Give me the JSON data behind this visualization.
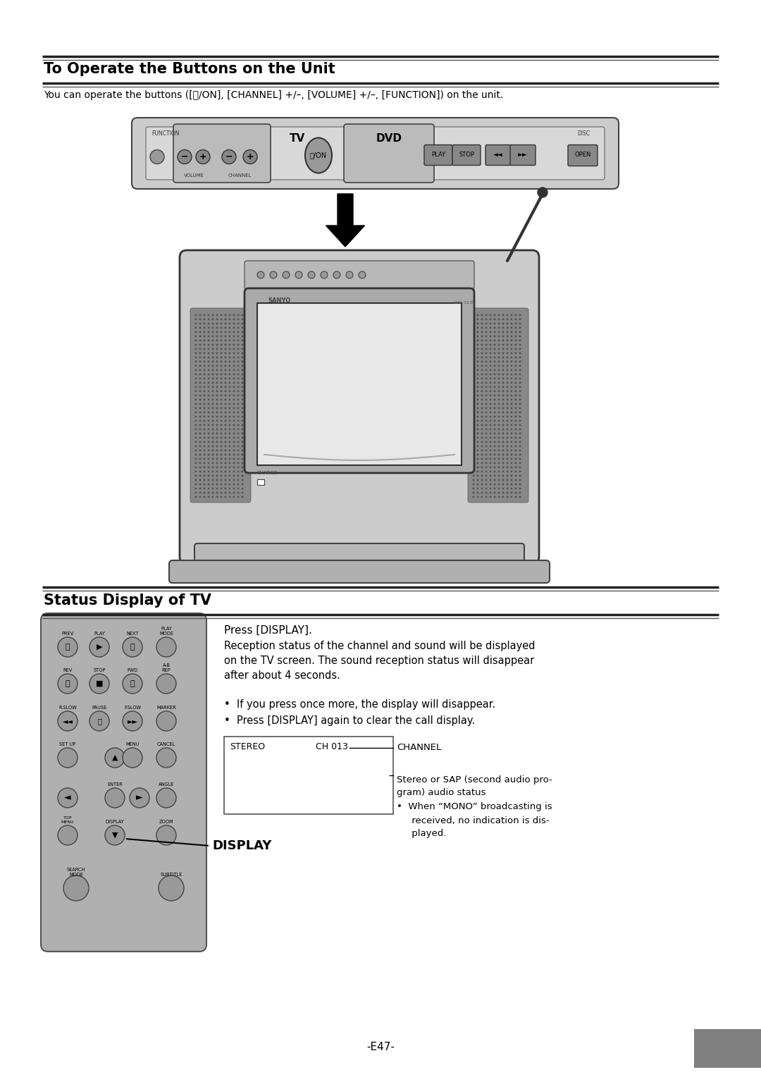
{
  "bg_color": "#ffffff",
  "title1": "To Operate the Buttons on the Unit",
  "title2": "Status Display of TV",
  "subtitle1": "You can operate the buttons ([⏻/ON], [CHANNEL] +/–, [VOLUME] +/–, [FUNCTION]) on the unit.",
  "press_display": "Press [DISPLAY].",
  "reception_text": "Reception status of the channel and sound will be displayed\non the TV screen. The sound reception status will disappear\nafter about 4 seconds.",
  "bullet1": "•  If you press once more, the display will disappear.",
  "bullet2": "•  Press [DISPLAY] again to clear the call display.",
  "stereo_label": "STEREO",
  "ch_label": "CH 013",
  "channel_annot": "CHANNEL",
  "stereo_annot1": "Stereo or SAP (second audio pro-",
  "stereo_annot2": "gram) audio status",
  "mono_bullet": "•  When “MONO” broadcasting is",
  "mono_text1": "     received, no indication is dis-",
  "mono_text2": "     played.",
  "display_label": "DISPLAY",
  "page_number": "-E47-",
  "gray_block_color": "#808080",
  "panel_color": "#cccccc",
  "panel_dark": "#999999",
  "btn_color": "#aaaaaa",
  "tv_body_color": "#c8c8c8",
  "rc_body_color": "#b0b0b0"
}
